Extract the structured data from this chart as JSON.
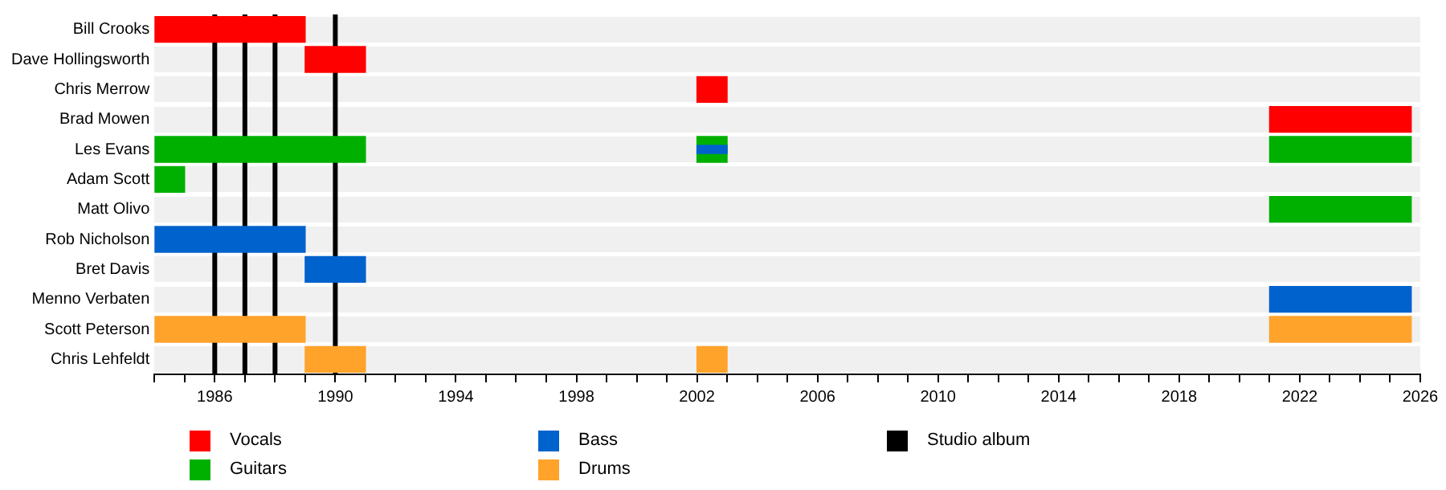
{
  "chart_data": {
    "type": "bar",
    "orientation": "horizontal",
    "grid": "y",
    "legend": "bottom",
    "categories": [
      "Bill Crooks",
      "Dave Hollingsworth",
      "Chris Merrow",
      "Brad Mowen",
      "Les Evans",
      "Adam Scott",
      "Matt Olivo",
      "Rob Nicholson",
      "Bret Davis",
      "Menno Verbaten",
      "Scott Peterson",
      "Chris Lehfeldt"
    ],
    "series": [
      {
        "name": "Vocals",
        "color": "#ff0000",
        "base": [
          1984,
          1989,
          2002,
          2021,
          null,
          null,
          null,
          null,
          null,
          null,
          null,
          null
        ],
        "values": [
          5,
          2,
          1,
          4.7,
          null,
          null,
          null,
          null,
          null,
          null,
          null,
          null
        ]
      },
      {
        "name": "Guitars",
        "color": "#00b000",
        "base": [
          null,
          null,
          null,
          null,
          1984,
          1984,
          2021,
          null,
          null,
          null,
          null,
          null
        ],
        "values": [
          null,
          null,
          null,
          null,
          7,
          1,
          4.7,
          null,
          null,
          null,
          null,
          null
        ]
      },
      {
        "name": "Bass",
        "color": "#0062cc",
        "base": [
          null,
          null,
          null,
          null,
          null,
          null,
          null,
          1984,
          1989,
          2021,
          null,
          null
        ],
        "values": [
          null,
          null,
          null,
          null,
          null,
          null,
          null,
          5,
          2,
          4.7,
          null,
          null
        ]
      },
      {
        "name": "Drums",
        "color": "#ffa32b",
        "base": [
          null,
          null,
          null,
          null,
          null,
          null,
          null,
          null,
          null,
          null,
          1984,
          1989
        ],
        "values": [
          null,
          null,
          null,
          null,
          null,
          null,
          null,
          null,
          null,
          null,
          5,
          2
        ]
      },
      {
        "color": "#00b000",
        "base": [
          null,
          null,
          null,
          null,
          2002,
          null,
          null,
          null,
          null,
          null,
          null,
          null
        ],
        "values": [
          null,
          null,
          null,
          null,
          1,
          null,
          null,
          null,
          null,
          null,
          null,
          null
        ]
      },
      {
        "color": "#00b000",
        "base": [
          null,
          null,
          null,
          null,
          2021,
          null,
          null,
          null,
          null,
          null,
          null,
          null
        ],
        "values": [
          null,
          null,
          null,
          null,
          4.7,
          null,
          null,
          null,
          null,
          null,
          null,
          null
        ]
      },
      {
        "color": "#ffa32b",
        "base": [
          null,
          null,
          null,
          null,
          null,
          null,
          null,
          null,
          null,
          null,
          2021,
          2002
        ],
        "values": [
          null,
          null,
          null,
          null,
          null,
          null,
          null,
          null,
          null,
          null,
          4.7,
          1
        ]
      },
      {
        "color": "#0062cc",
        "base": [
          null,
          null,
          null,
          null,
          2002,
          null,
          null,
          null,
          null,
          null,
          null,
          null
        ],
        "values": [
          null,
          null,
          null,
          null,
          1,
          null,
          null,
          null,
          null,
          null,
          null,
          null
        ]
      }
    ],
    "ref_lines": [
      {
        "axis": "x",
        "value": 1986,
        "label": "Studio album",
        "color": "#000000"
      },
      {
        "axis": "x",
        "value": 1987,
        "color": "#000000"
      },
      {
        "axis": "x",
        "value": 1988,
        "color": "#000000"
      },
      {
        "axis": "x",
        "value": 1990,
        "color": "#000000"
      }
    ],
    "xlim": [
      1984,
      2026
    ],
    "xticks": [
      {
        "value": 1984,
        "label": null
      },
      {
        "value": 1985,
        "label": null
      },
      1986,
      {
        "value": 1987,
        "label": null
      },
      {
        "value": 1988,
        "label": null
      },
      {
        "value": 1989,
        "label": null
      },
      1990,
      {
        "value": 1991,
        "label": null
      },
      {
        "value": 1992,
        "label": null
      },
      {
        "value": 1993,
        "label": null
      },
      1994,
      {
        "value": 1995,
        "label": null
      },
      {
        "value": 1996,
        "label": null
      },
      {
        "value": 1997,
        "label": null
      },
      1998,
      {
        "value": 1999,
        "label": null
      },
      {
        "value": 2000,
        "label": null
      },
      {
        "value": 2001,
        "label": null
      },
      2002,
      {
        "value": 2003,
        "label": null
      },
      {
        "value": 2004,
        "label": null
      },
      {
        "value": 2005,
        "label": null
      },
      2006,
      {
        "value": 2007,
        "label": null
      },
      {
        "value": 2008,
        "label": null
      },
      {
        "value": 2009,
        "label": null
      },
      2010,
      {
        "value": 2011,
        "label": null
      },
      {
        "value": 2012,
        "label": null
      },
      {
        "value": 2013,
        "label": null
      },
      2014,
      {
        "value": 2015,
        "label": null
      },
      {
        "value": 2016,
        "label": null
      },
      {
        "value": 2017,
        "label": null
      },
      2018,
      {
        "value": 2019,
        "label": null
      },
      {
        "value": 2020,
        "label": null
      },
      {
        "value": 2021,
        "label": null
      },
      2022,
      {
        "value": 2023,
        "label": null
      },
      {
        "value": 2024,
        "label": null
      },
      {
        "value": 2025,
        "label": null
      },
      2026
    ]
  }
}
